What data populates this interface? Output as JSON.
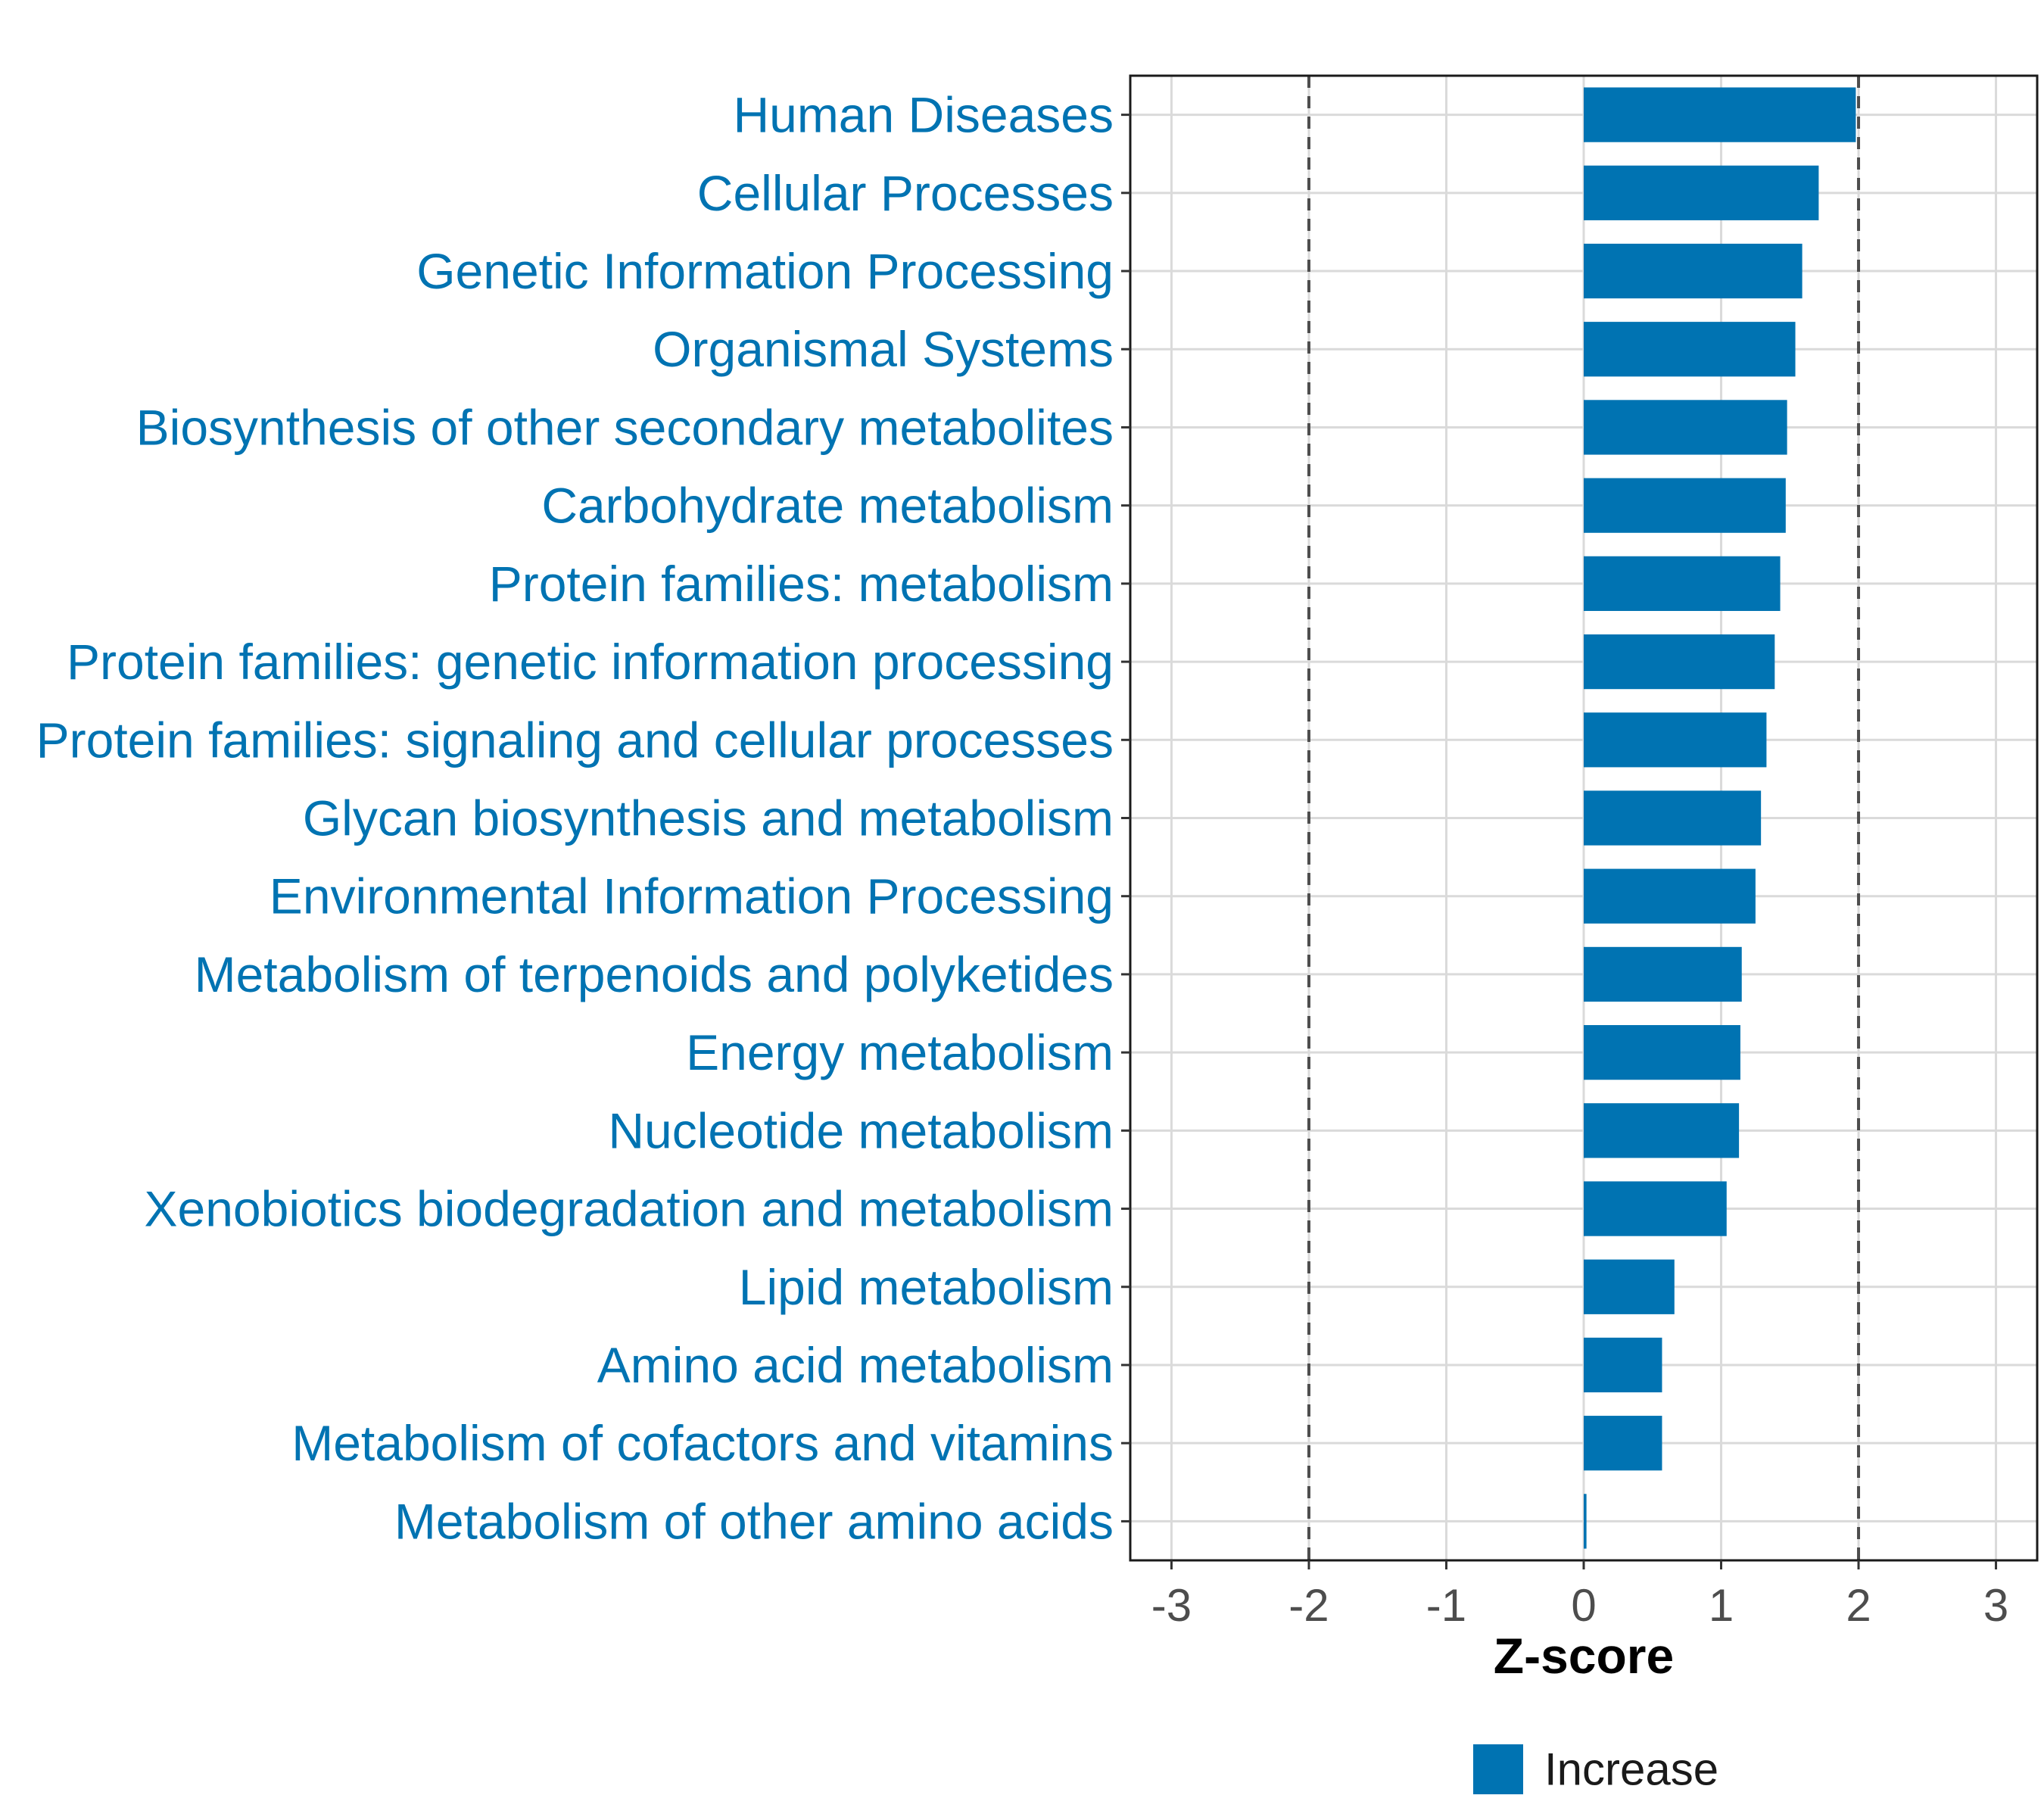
{
  "chart_data": {
    "type": "bar",
    "orientation": "horizontal",
    "categories": [
      "Human Diseases",
      "Cellular Processes",
      "Genetic Information Processing",
      "Organismal Systems",
      "Biosynthesis of other secondary metabolites",
      "Carbohydrate metabolism",
      "Protein families: metabolism",
      "Protein families: genetic information processing",
      "Protein families: signaling and cellular processes",
      "Glycan biosynthesis and metabolism",
      "Environmental Information Processing",
      "Metabolism of terpenoids and polyketides",
      "Energy metabolism",
      "Nucleotide metabolism",
      "Xenobiotics biodegradation and metabolism",
      "Lipid metabolism",
      "Amino acid metabolism",
      "Metabolism of cofactors and vitamins",
      "Metabolism of other amino acids"
    ],
    "series": [
      {
        "name": "Increase",
        "color": "#0073b2",
        "values": [
          1.98,
          1.71,
          1.59,
          1.54,
          1.48,
          1.47,
          1.43,
          1.39,
          1.33,
          1.29,
          1.25,
          1.15,
          1.14,
          1.13,
          1.04,
          0.66,
          0.57,
          0.57,
          0.02
        ]
      }
    ],
    "xlabel": "Z-score",
    "ylabel": "",
    "xlim": [
      -3.3,
      3.3
    ],
    "xticks": [
      "-3",
      "-2",
      "-1",
      "0",
      "1",
      "2",
      "3"
    ],
    "reference_lines": [
      -2,
      2
    ],
    "grid": true,
    "legend": {
      "placement": "bottom",
      "entries": [
        "Increase"
      ]
    },
    "label_color": "#0073b2"
  }
}
